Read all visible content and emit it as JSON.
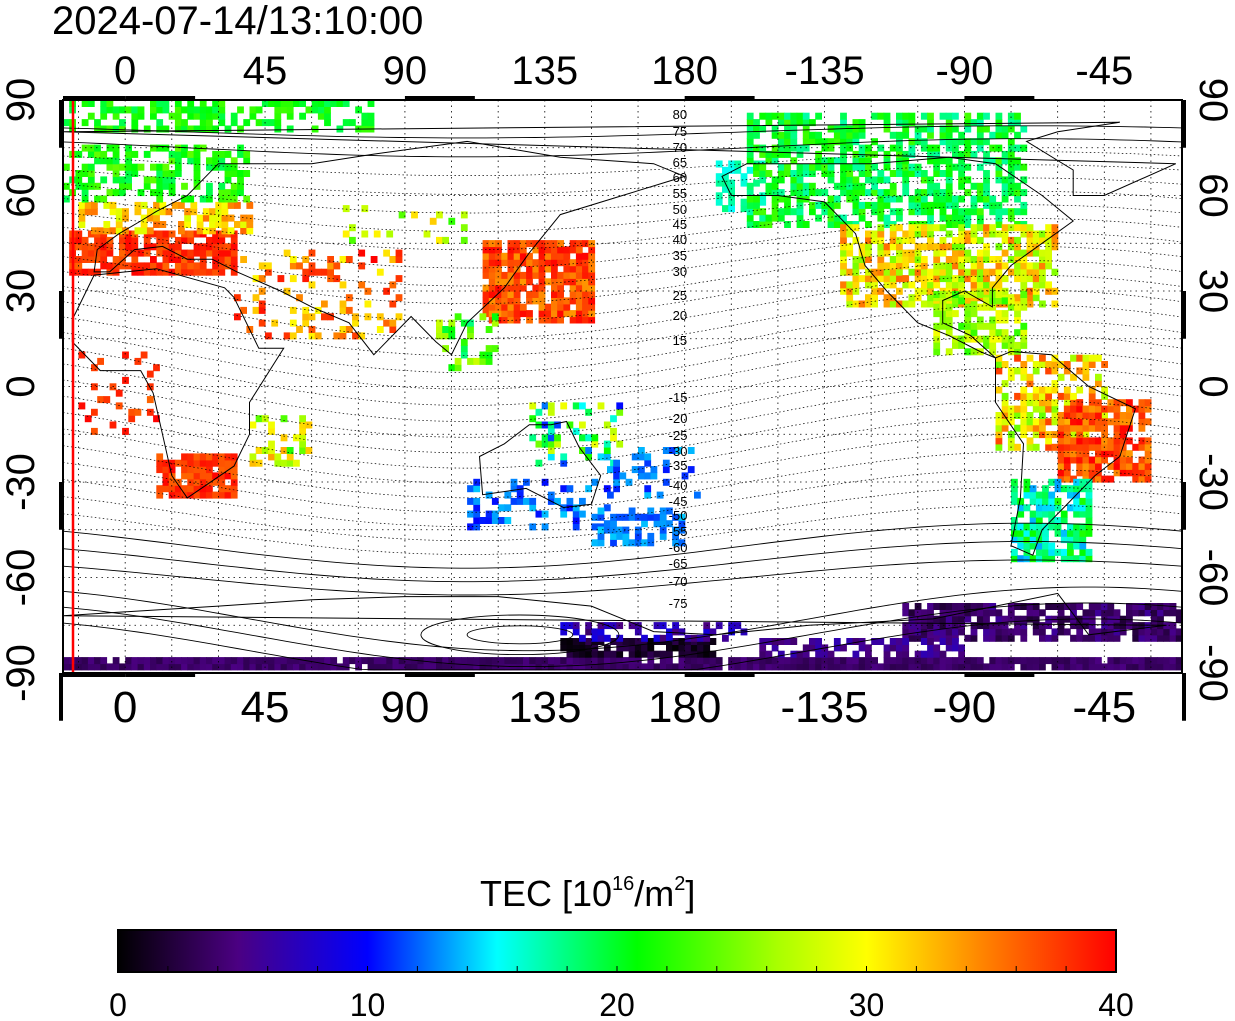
{
  "title": "2024-07-14/13:10:00",
  "lon_ticks": [
    "0",
    "45",
    "90",
    "135",
    "180",
    "-135",
    "-90",
    "-45"
  ],
  "lat_ticks": [
    "90",
    "60",
    "30",
    "0",
    "-30",
    "-60",
    "-90"
  ],
  "colorbar": {
    "label_main": "TEC  [10",
    "label_exp1": "16",
    "label_mid": "/m",
    "label_exp2": "2",
    "label_end": "]",
    "ticks": [
      "0",
      "10",
      "20",
      "30",
      "40"
    ],
    "min": 0,
    "max": 40
  },
  "contour_labels_north": [
    "80",
    "75",
    "70",
    "65",
    "60",
    "55",
    "50",
    "45",
    "40",
    "35",
    "30",
    "25",
    "20",
    "15"
  ],
  "contour_labels_south": [
    "-15",
    "-20",
    "-25",
    "-30",
    "-35",
    "-40",
    "-45",
    "-50",
    "-55",
    "-60",
    "-65",
    "-70",
    "-75"
  ],
  "colors": {
    "frame": "#000000",
    "meridian_marker": "#ff0000",
    "scale": [
      "#000000",
      "#4b0082",
      "#0000ff",
      "#00ffff",
      "#00ff00",
      "#ffff00",
      "#ff8000",
      "#ff0000"
    ]
  }
}
